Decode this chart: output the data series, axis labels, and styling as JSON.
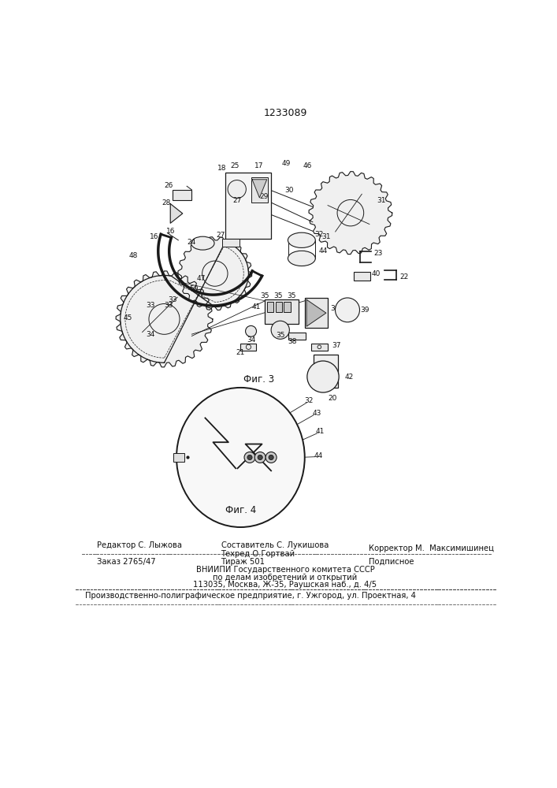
{
  "patent_number": "1233089",
  "fig3_label": "Фиг. 3",
  "fig4_label": "Фиг. 4",
  "footer_line1_left": "Редактор С. Лыжова",
  "footer_line1_center_top": "Составитель С. Лукишова",
  "footer_line1_center_bot": "Техред О.Гортвай",
  "footer_line1_right": "Корректор М.  Максимишинец",
  "footer_line2_left": "Заказ 2765/47",
  "footer_line2_center": "Тираж 501",
  "footer_line2_right": "Подписное",
  "footer_line3": "ВНИИПИ Государственного комитета СССР",
  "footer_line4": "по делам изобретений и открытий",
  "footer_line5": "113035, Москва, Ж-35, Раушская наб., д. 4/5",
  "footer_bottom": "Производственно-полиграфическое предприятие, г. Ужгород, ул. Проектная, 4",
  "bg_color": "#ffffff",
  "text_color": "#111111"
}
